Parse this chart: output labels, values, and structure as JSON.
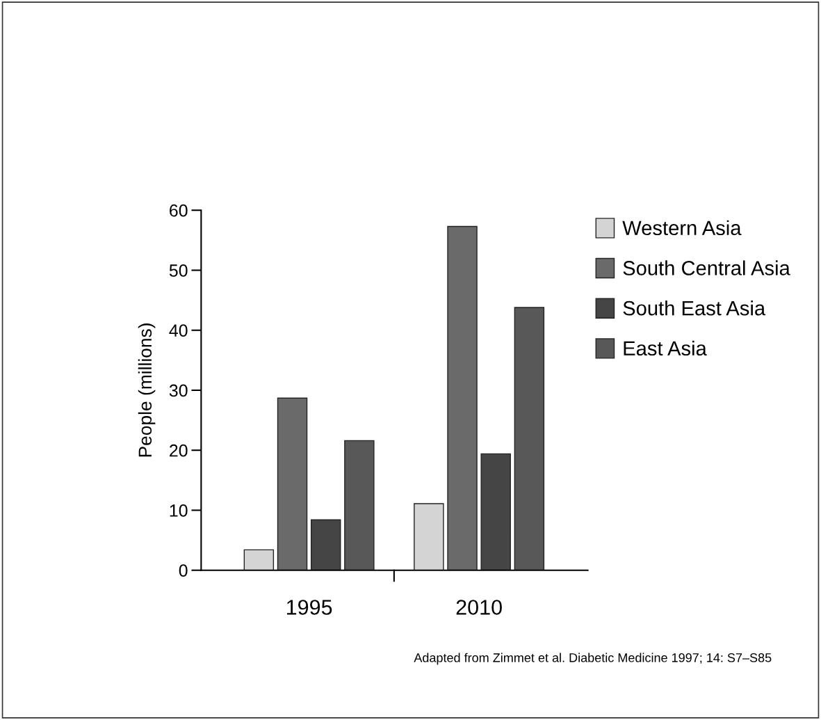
{
  "chart_data": {
    "type": "bar",
    "ylabel": "People (millions)",
    "categories": [
      "1995",
      "2010"
    ],
    "series": [
      {
        "name": "Western Asia",
        "color": "#d4d4d4",
        "values": [
          3.4,
          11.1
        ]
      },
      {
        "name": "South Central Asia",
        "color": "#6a6a6a",
        "values": [
          28.7,
          57.3
        ]
      },
      {
        "name": "South East Asia",
        "color": "#454545",
        "values": [
          8.4,
          19.4
        ]
      },
      {
        "name": "East Asia",
        "color": "#585858",
        "values": [
          21.6,
          43.8
        ]
      }
    ],
    "ylim": [
      0,
      60
    ],
    "yticks": [
      0,
      10,
      20,
      30,
      40,
      50,
      60
    ],
    "grid": false,
    "legend": "top right",
    "annotations": [
      "Adapted from Zimmet et al. Diabetic Medicine 1997; 14: S7–S85"
    ]
  }
}
